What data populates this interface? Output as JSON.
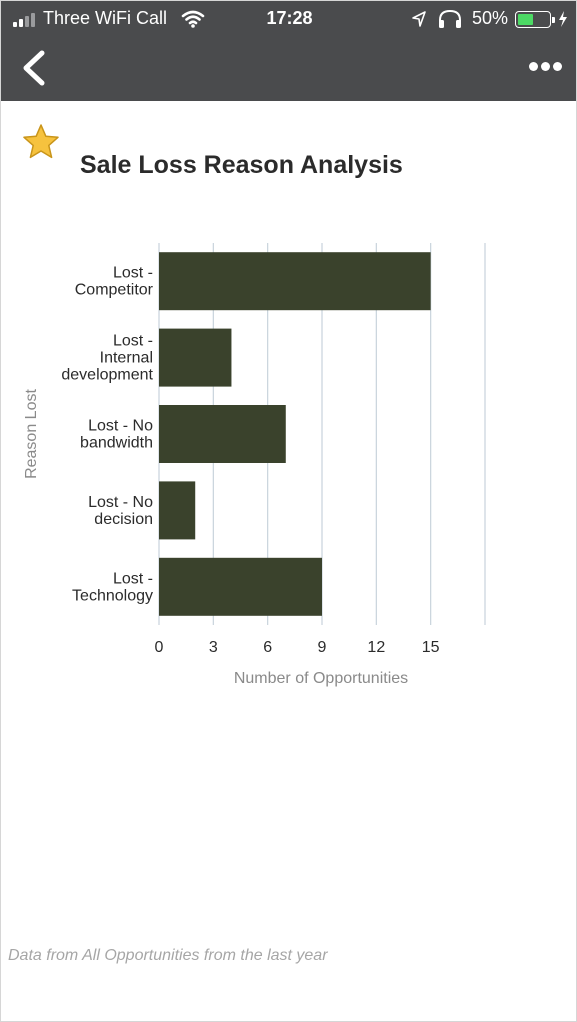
{
  "status_bar": {
    "carrier": "Three WiFi Call",
    "time": "17:28",
    "battery_percent": "50%",
    "battery_level": 0.5,
    "battery_color": "#4cd964",
    "icons": [
      "signal-icon",
      "wifi-icon",
      "location-arrow-icon",
      "headphones-icon",
      "battery-icon",
      "charging-bolt-icon"
    ]
  },
  "nav": {
    "back_icon": "chevron-left-icon",
    "more_icon": "more-dots-icon"
  },
  "report": {
    "title": "Sale Loss Reason Analysis",
    "favorite_icon": "star-icon",
    "favorite_color": "#f6c23e",
    "footnote": "Data from All Opportunities from the last year"
  },
  "chart_data": {
    "type": "bar",
    "orientation": "horizontal",
    "categories": [
      [
        "Lost -",
        "Competitor"
      ],
      [
        "Lost -",
        "Internal",
        "development"
      ],
      [
        "Lost - No",
        "bandwidth"
      ],
      [
        "Lost - No",
        "decision"
      ],
      [
        "Lost -",
        "Technology"
      ]
    ],
    "values": [
      15,
      4,
      7,
      2,
      9
    ],
    "xlabel": "Number of Opportunities",
    "ylabel": "Reason Lost",
    "xlim": [
      0,
      18
    ],
    "xticks": [
      0,
      3,
      6,
      9,
      12,
      15
    ],
    "grid": true,
    "bar_color": "#3a422c",
    "grid_color": "#c9d3dc"
  }
}
